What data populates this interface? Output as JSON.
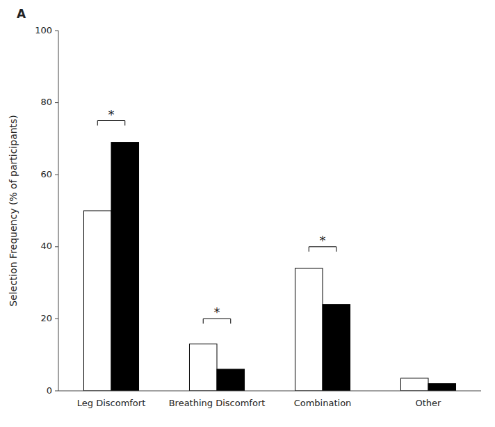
{
  "chart_data": {
    "type": "bar",
    "title": "A",
    "categories": [
      "Leg Discomfort",
      "Breathing Discomfort",
      "Combination",
      "Other"
    ],
    "series": [
      {
        "color": "#ffffff",
        "values": [
          50,
          13,
          34,
          3.5
        ]
      },
      {
        "color": "#000000",
        "values": [
          69,
          6,
          24,
          2
        ]
      }
    ],
    "ylabel": "Selection Frequency (% of participants)",
    "ylim": [
      0,
      100
    ],
    "yticks": [
      0,
      20,
      40,
      60,
      80,
      100
    ],
    "grid": false,
    "annotations": [
      {
        "text": "*",
        "category": "Leg Discomfort",
        "y": 75
      },
      {
        "text": "*",
        "category": "Breathing Discomfort",
        "y": 20
      },
      {
        "text": "*",
        "category": "Combination",
        "y": 40
      }
    ]
  }
}
